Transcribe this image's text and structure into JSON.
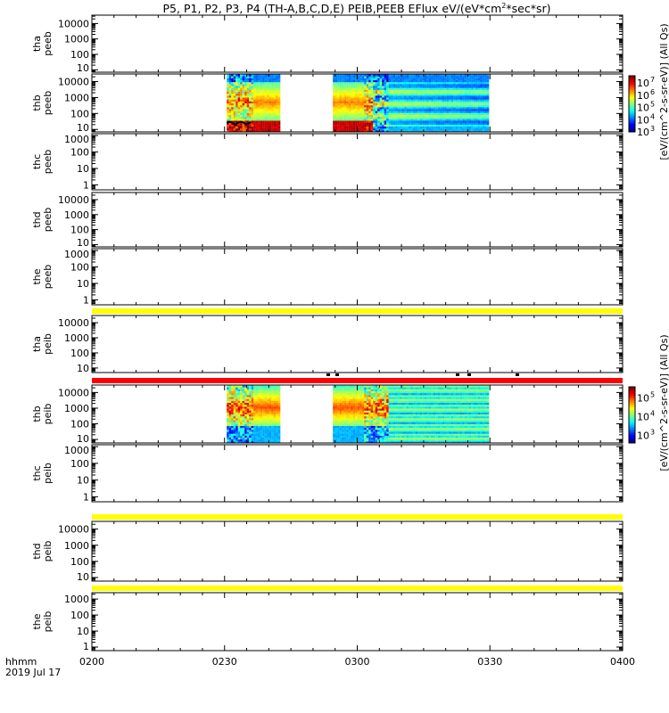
{
  "title": {
    "prefix": "P5, P1, P2, P3, P4 (TH-A,B,C,D,E) PEIB,PEEB EFlux eV/(eV*cm",
    "sup": "2",
    "suffix": "*sec*sr)"
  },
  "chart_data": {
    "type": "heatmap",
    "title": "P5, P1, P2, P3, P4 (TH-A,B,C,D,E) PEIB,PEEB EFlux eV/(eV*cm2*sec*sr)",
    "xlabel": "hhmm",
    "date_label": "2019 Jul 17",
    "x_ticks": [
      "0200",
      "0230",
      "0300",
      "0330",
      "0400"
    ],
    "x_range_minutes": [
      0,
      120
    ],
    "panels": [
      {
        "line1": "tha",
        "line2": "peeb",
        "ticks": [
          10,
          100,
          1000,
          10000
        ],
        "labels": [
          "10",
          "100",
          "1000",
          "10000"
        ],
        "yrange": [
          7,
          35000
        ]
      },
      {
        "line1": "thb",
        "line2": "peeb",
        "ticks": [
          10,
          100,
          1000,
          10000
        ],
        "labels": [
          "10",
          "100",
          "1000",
          "10000"
        ],
        "yrange": [
          7,
          30000
        ],
        "has_data": true,
        "species": "e"
      },
      {
        "line1": "thc",
        "line2": "peeb",
        "ticks": [
          1,
          10,
          100,
          1000
        ],
        "labels": [
          "1",
          "10",
          "100",
          "1000"
        ],
        "yrange": [
          0.5,
          1300
        ]
      },
      {
        "line1": "thd",
        "line2": "peeb",
        "ticks": [
          10,
          100,
          1000,
          10000
        ],
        "labels": [
          "10",
          "100",
          "1000",
          "10000"
        ],
        "yrange": [
          7,
          30000
        ]
      },
      {
        "line1": "the",
        "line2": "peeb",
        "ticks": [
          1,
          10,
          100,
          1000
        ],
        "labels": [
          "1",
          "10",
          "100",
          "1000"
        ],
        "yrange": [
          0.5,
          1300
        ]
      },
      {
        "line1": "tha",
        "line2": "peib",
        "ticks": [
          10,
          100,
          1000,
          10000
        ],
        "labels": [
          "10",
          "100",
          "1000",
          "10000"
        ],
        "yrange": [
          5,
          30000
        ]
      },
      {
        "line1": "thb",
        "line2": "peib",
        "ticks": [
          10,
          100,
          1000,
          10000
        ],
        "labels": [
          "10",
          "100",
          "1000",
          "10000"
        ],
        "yrange": [
          6,
          30000
        ],
        "has_data": true,
        "species": "i"
      },
      {
        "line1": "thc",
        "line2": "peib",
        "ticks": [
          1,
          10,
          100,
          1000
        ],
        "labels": [
          "1",
          "10",
          "100",
          "1000"
        ],
        "yrange": [
          0.5,
          1300
        ]
      },
      {
        "line1": "thd",
        "line2": "peib",
        "ticks": [
          10,
          100,
          1000,
          10000
        ],
        "labels": [
          "10",
          "100",
          "1000",
          "10000"
        ],
        "yrange": [
          6,
          30000
        ]
      },
      {
        "line1": "the",
        "line2": "peib",
        "ticks": [
          1,
          10,
          100,
          1000
        ],
        "labels": [
          "1",
          "10",
          "100",
          "1000"
        ],
        "yrange": [
          0.6,
          2500
        ]
      }
    ],
    "data_intervals_minutes": [
      [
        30.5,
        42.5
      ],
      [
        54.5,
        89.5
      ]
    ],
    "colorbars": [
      {
        "panel": 1,
        "labels": [
          "10",
          "10",
          "10",
          "10",
          "10"
        ],
        "exponents": [
          "7",
          "6",
          "5",
          "4",
          "3"
        ],
        "range_log": [
          3,
          7.6
        ],
        "title": "[eV/(cm^2-s-sr-eV)] (All Qs)"
      },
      {
        "panel": 6,
        "labels": [
          "10",
          "10",
          "10"
        ],
        "exponents": [
          "5",
          "4",
          "3"
        ],
        "range_log": [
          2.6,
          5.6
        ],
        "title": "[eV/(cm^2-s-sr-eV)] (All Qs)"
      }
    ],
    "flag_bars": [
      {
        "after_panel": 4,
        "color": "#ffff00"
      },
      {
        "after_panel": 5,
        "color": "#ff0000"
      },
      {
        "after_panel": 7,
        "color": "#ffff00"
      },
      {
        "after_panel": 8,
        "color": "#ffff00"
      }
    ]
  }
}
